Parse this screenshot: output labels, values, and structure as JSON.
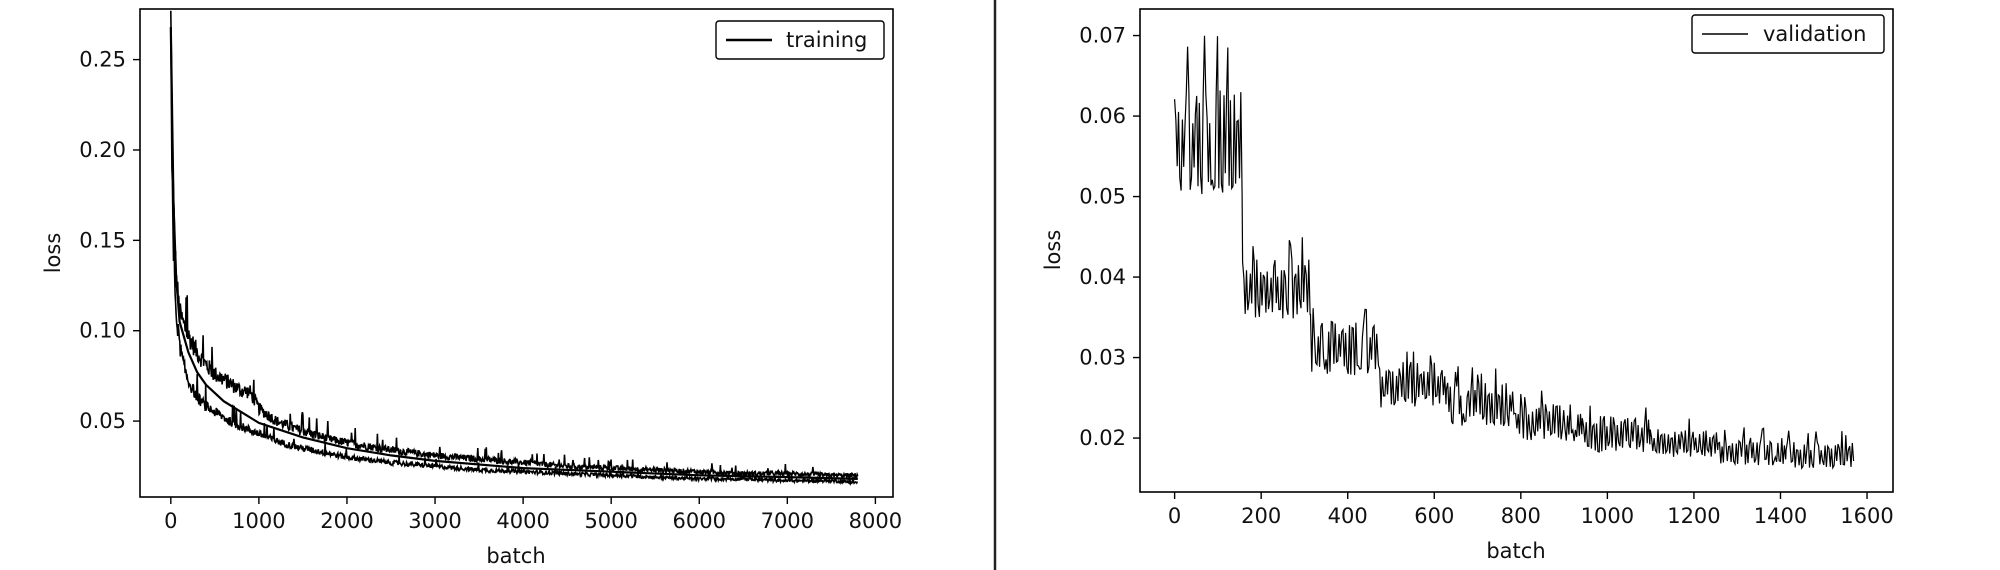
{
  "chart_data": [
    {
      "type": "line",
      "title": "",
      "xlabel": "batch",
      "ylabel": "loss",
      "xlim": [
        -350,
        8200
      ],
      "ylim": [
        0.008,
        0.278
      ],
      "xticks": [
        0,
        1000,
        2000,
        3000,
        4000,
        5000,
        6000,
        7000,
        8000
      ],
      "xtick_labels": [
        "0",
        "1000",
        "2000",
        "3000",
        "4000",
        "5000",
        "6000",
        "7000",
        "8000"
      ],
      "yticks": [
        0.05,
        0.1,
        0.15,
        0.2,
        0.25
      ],
      "ytick_labels": [
        "0.05",
        "0.10",
        "0.15",
        "0.20",
        "0.25"
      ],
      "grid": false,
      "legend": {
        "position": "top-right",
        "entries": [
          "training"
        ]
      },
      "series": [
        {
          "name": "training",
          "color": "#000000",
          "upper_envelope": {
            "x": [
              0,
              10,
              30,
              60,
              100,
              150,
              200,
              300,
              400,
              500,
              600,
              700,
              800,
              900,
              1000,
              1200,
              1400,
              1600,
              1800,
              2000,
              2500,
              3000,
              3500,
              4000,
              4500,
              5000,
              5500,
              6000,
              6500,
              7000,
              7500,
              7800
            ],
            "y": [
              0.272,
              0.23,
              0.17,
              0.13,
              0.11,
              0.103,
              0.097,
              0.088,
              0.081,
              0.076,
              0.073,
              0.07,
              0.067,
              0.066,
              0.057,
              0.05,
              0.046,
              0.043,
              0.04,
              0.038,
              0.034,
              0.031,
              0.029,
              0.027,
              0.025,
              0.024,
              0.023,
              0.022,
              0.021,
              0.021,
              0.02,
              0.02
            ]
          },
          "lower_envelope": {
            "x": [
              0,
              10,
              30,
              60,
              100,
              150,
              200,
              300,
              400,
              500,
              600,
              700,
              800,
              1000,
              1200,
              1400,
              1600,
              1800,
              2000,
              2500,
              3000,
              3500,
              4000,
              4500,
              5000,
              5500,
              6000,
              6500,
              7000,
              7500,
              7800
            ],
            "y": [
              0.265,
              0.2,
              0.14,
              0.11,
              0.092,
              0.08,
              0.072,
              0.063,
              0.058,
              0.055,
              0.052,
              0.049,
              0.047,
              0.043,
              0.039,
              0.036,
              0.034,
              0.032,
              0.03,
              0.027,
              0.025,
              0.023,
              0.022,
              0.021,
              0.02,
              0.019,
              0.018,
              0.018,
              0.017,
              0.017,
              0.016
            ]
          },
          "smooth": {
            "x": [
              0,
              30,
              60,
              100,
              200,
              300,
              400,
              600,
              800,
              1000,
              1500,
              2000,
              2500,
              3000,
              4000,
              5000,
              6000,
              7000,
              7800
            ],
            "y": [
              0.268,
              0.17,
              0.13,
              0.105,
              0.088,
              0.077,
              0.07,
              0.061,
              0.055,
              0.049,
              0.041,
              0.035,
              0.031,
              0.028,
              0.024,
              0.022,
              0.02,
              0.019,
              0.018
            ]
          }
        }
      ]
    },
    {
      "type": "line",
      "title": "",
      "xlabel": "batch",
      "ylabel": "loss",
      "xlim": [
        -80,
        1660
      ],
      "ylim": [
        0.0133,
        0.0733
      ],
      "xticks": [
        0,
        200,
        400,
        600,
        800,
        1000,
        1200,
        1400,
        1600
      ],
      "xtick_labels": [
        "0",
        "200",
        "400",
        "600",
        "800",
        "1000",
        "1200",
        "1400",
        "1600"
      ],
      "yticks": [
        0.02,
        0.03,
        0.04,
        0.05,
        0.06,
        0.07
      ],
      "ytick_labels": [
        "0.02",
        "0.03",
        "0.04",
        "0.05",
        "0.06",
        "0.07"
      ],
      "grid": false,
      "legend": {
        "position": "top-right",
        "entries": [
          "validation"
        ]
      },
      "series": [
        {
          "name": "validation",
          "color": "#000000",
          "period": 157,
          "epochs": [
            {
              "x_start": 0,
              "x_end": 157,
              "top": 0.061,
              "base": 0.052,
              "peak": 0.071
            },
            {
              "x_start": 157,
              "x_end": 314,
              "top": 0.041,
              "base": 0.036,
              "peak": 0.0455
            },
            {
              "x_start": 314,
              "x_end": 471,
              "top": 0.0335,
              "base": 0.029,
              "peak": 0.0365
            },
            {
              "x_start": 471,
              "x_end": 628,
              "top": 0.0285,
              "base": 0.0245,
              "peak": 0.031
            },
            {
              "x_start": 628,
              "x_end": 785,
              "top": 0.026,
              "base": 0.0225,
              "peak": 0.029
            },
            {
              "x_start": 785,
              "x_end": 942,
              "top": 0.0235,
              "base": 0.0205,
              "peak": 0.026
            },
            {
              "x_start": 942,
              "x_end": 1099,
              "top": 0.022,
              "base": 0.019,
              "peak": 0.0245
            },
            {
              "x_start": 1099,
              "x_end": 1256,
              "top": 0.0205,
              "base": 0.018,
              "peak": 0.0225
            },
            {
              "x_start": 1256,
              "x_end": 1413,
              "top": 0.0195,
              "base": 0.0172,
              "peak": 0.0215
            },
            {
              "x_start": 1413,
              "x_end": 1570,
              "top": 0.019,
              "base": 0.0168,
              "peak": 0.021
            }
          ]
        }
      ]
    }
  ]
}
